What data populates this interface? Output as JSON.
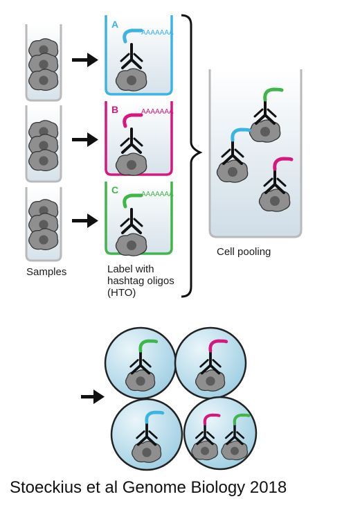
{
  "labels": {
    "samples": "Samples",
    "label_line1": "Label with",
    "label_line2": "hashtag oligos",
    "label_line3": "(HTO)",
    "pooling": "Cell pooling",
    "citation": "Stoeckius et al Genome Biology 2018"
  },
  "tubes": [
    {
      "letter": "A",
      "color": "#3bb4e3",
      "seq": "AAAAAAA"
    },
    {
      "letter": "B",
      "color": "#d5177e",
      "seq": "AAAAAAA"
    },
    {
      "letter": "C",
      "color": "#3fb54a",
      "seq": "AAAAAAA"
    }
  ],
  "colors": {
    "blue": "#3bb4e3",
    "magenta": "#d5177e",
    "green": "#3fb54a",
    "cell_fill": "#8f8f8f",
    "nucleus": "#5c5c5c",
    "tube_wall": "#b9b9b9",
    "tube_fill": "#e6ecf1",
    "droplet_fill": "#bfe0ee"
  },
  "icons": [
    "arrow-right-icon",
    "antibody-icon",
    "cell-icon",
    "bracket-icon",
    "droplet-icon"
  ]
}
